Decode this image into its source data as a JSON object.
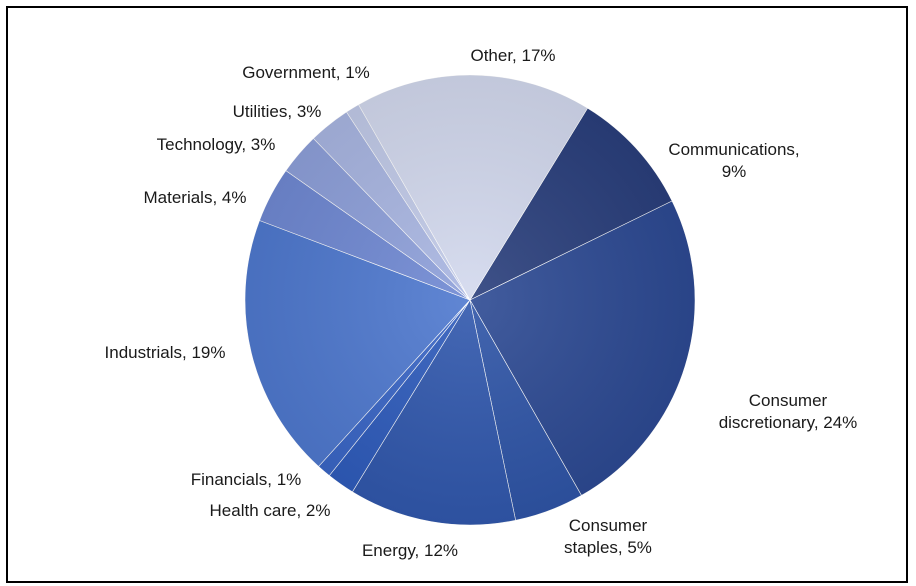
{
  "chart_data": {
    "type": "pie",
    "title": "",
    "slices": [
      {
        "name": "Communications",
        "value": 9,
        "color": "#2a3f7c",
        "label_lines": [
          "Communications,",
          "9%"
        ]
      },
      {
        "name": "Consumer discretionary",
        "value": 24,
        "color": "#2d4a93",
        "label_lines": [
          "Consumer",
          "discretionary, 24%"
        ]
      },
      {
        "name": "Consumer staples",
        "value": 5,
        "color": "#2f55a7",
        "label_lines": [
          "Consumer",
          "staples, 5%"
        ]
      },
      {
        "name": "Energy",
        "value": 12,
        "color": "#3158ad",
        "label_lines": [
          "Energy, 12%"
        ]
      },
      {
        "name": "Health care",
        "value": 2,
        "color": "#2f5cbc",
        "label_lines": [
          "Health care, 2%"
        ]
      },
      {
        "name": "Financials",
        "value": 1,
        "color": "#3a66c6",
        "label_lines": [
          "Financials, 1%"
        ]
      },
      {
        "name": "Industrials",
        "value": 19,
        "color": "#4f79cf",
        "label_lines": [
          "Industrials, 19%"
        ]
      },
      {
        "name": "Materials",
        "value": 4,
        "color": "#7089d3",
        "label_lines": [
          "Materials, 4%"
        ]
      },
      {
        "name": "Technology",
        "value": 3,
        "color": "#8ea0da",
        "label_lines": [
          "Technology, 3%"
        ]
      },
      {
        "name": "Utilities",
        "value": 3,
        "color": "#a9b6e2",
        "label_lines": [
          "Utilities, 3%"
        ]
      },
      {
        "name": "Government",
        "value": 1,
        "color": "#c1cae8",
        "label_lines": [
          "Government,  1%"
        ]
      },
      {
        "name": "Other",
        "value": 17,
        "color": "#d3d9ee",
        "label_lines": [
          "Other, 17%"
        ]
      }
    ],
    "legend": "none"
  }
}
